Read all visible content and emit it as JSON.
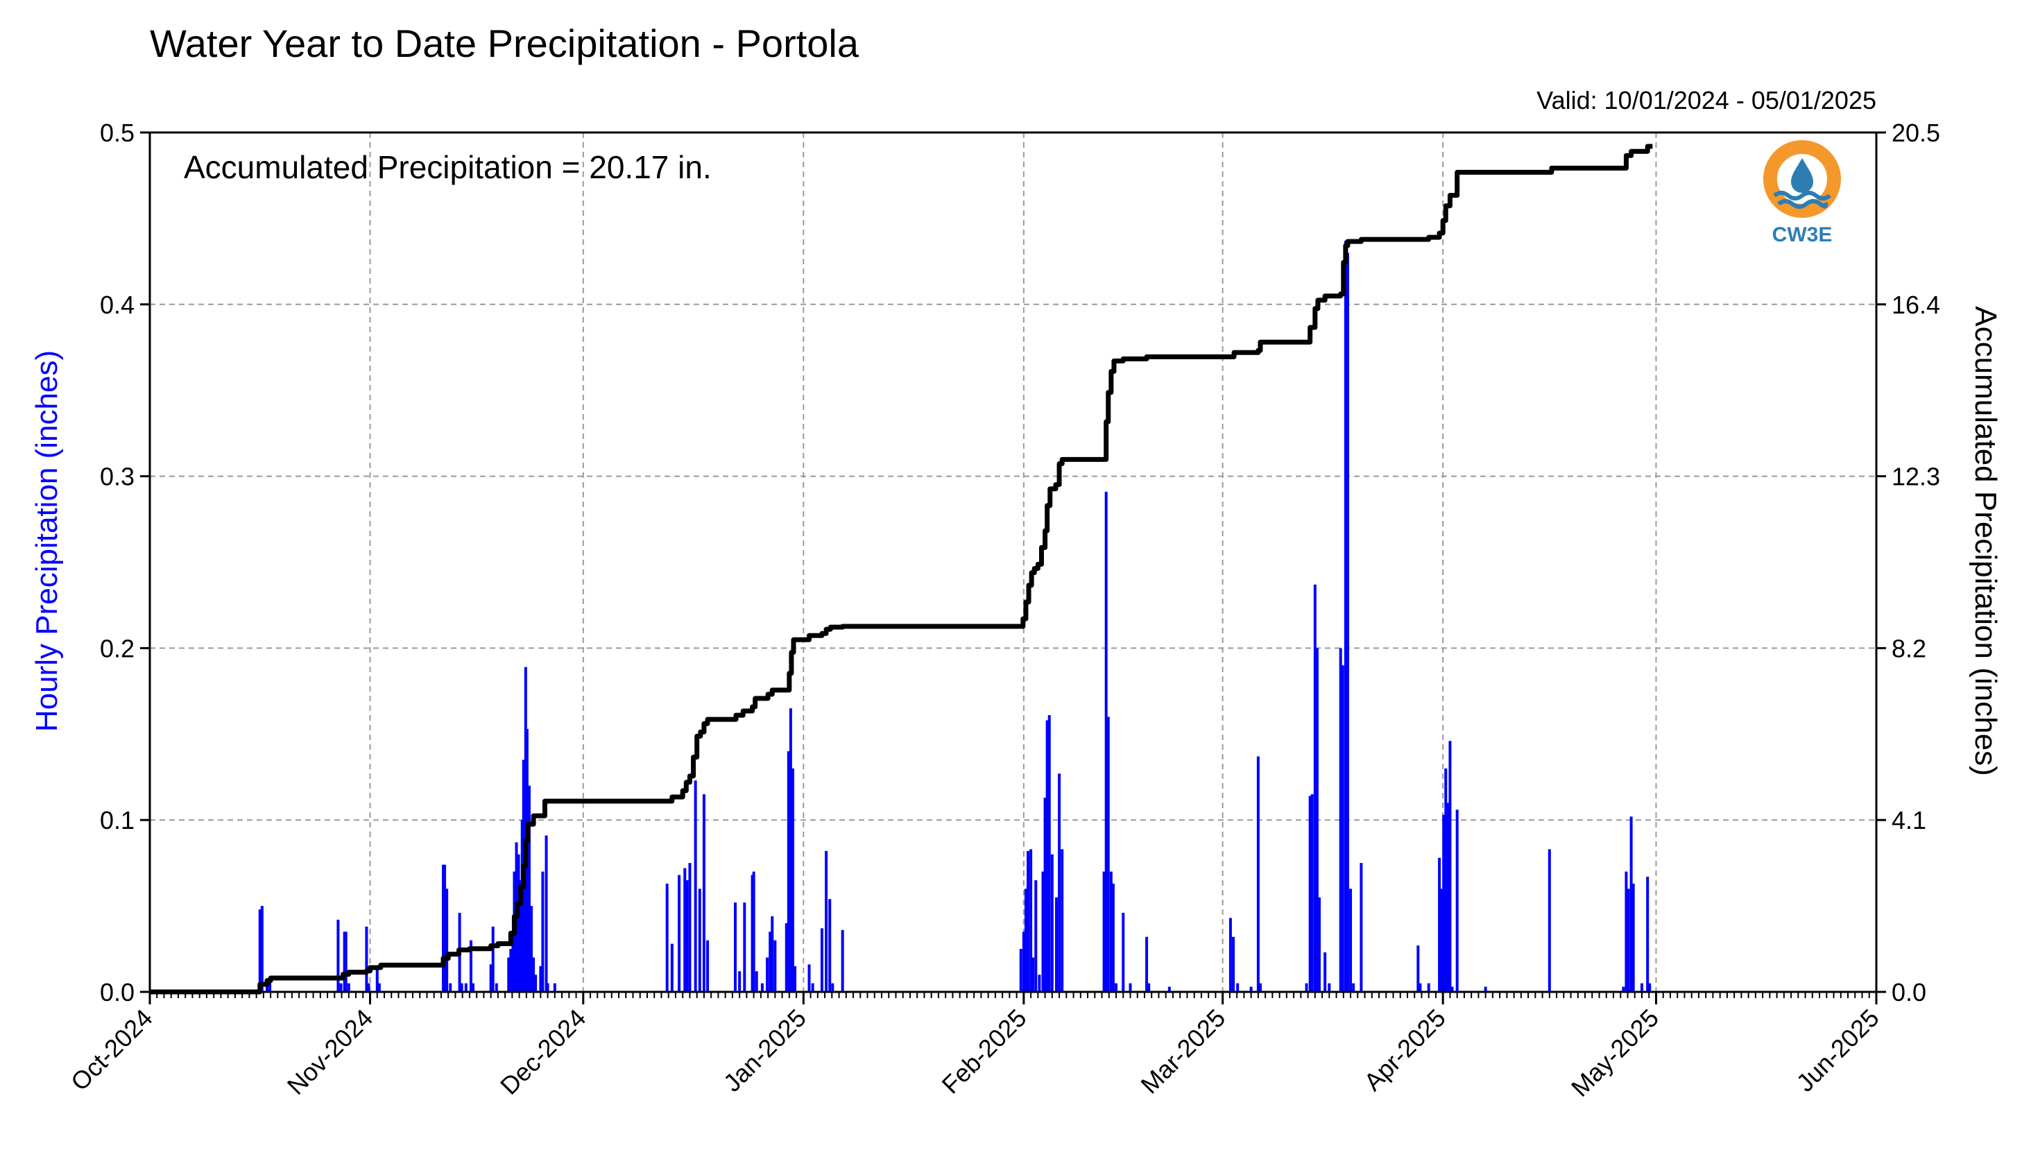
{
  "header": {
    "title": "Water Year to Date Precipitation - Portola",
    "valid": "Valid: 10/01/2024 - 05/01/2025"
  },
  "annotation": "Accumulated Precipitation = 20.17 in.",
  "logo": {
    "text": "CW3E",
    "icon": "water-drop-sun-logo-icon",
    "ring_color": "#f4982c",
    "wave_color": "#2d7db3"
  },
  "colors": {
    "hourly": "#0000ff",
    "accumulated": "#000000"
  },
  "chart_data": {
    "type": "bar",
    "title": "Water Year to Date Precipitation - Portola",
    "subtitle": "Valid: 10/01/2024 - 05/01/2025",
    "xlabel": "",
    "x_ticks": [
      "Oct-2024",
      "Nov-2024",
      "Dec-2024",
      "Jan-2025",
      "Feb-2025",
      "Mar-2025",
      "Apr-2025",
      "May-2025",
      "Jun-2025"
    ],
    "x_range_days": [
      0,
      243
    ],
    "x_unit": "days since 2024-10-01",
    "y_left": {
      "label": "Hourly Precipitation (inches)",
      "ticks": [
        "0.0",
        "0.1",
        "0.2",
        "0.3",
        "0.4",
        "0.5"
      ],
      "range": [
        0,
        0.5
      ]
    },
    "y_right": {
      "label": "Accumulated Precipitation (inches)",
      "ticks": [
        "0.0",
        "4.1",
        "8.2",
        "12.3",
        "16.4",
        "20.5"
      ],
      "range": [
        0,
        20.5
      ]
    },
    "grid": true,
    "series": [
      {
        "name": "Hourly Precipitation",
        "axis": "left",
        "type": "bar",
        "color": "#0000ff",
        "points": [
          [
            15.5,
            0.048
          ],
          [
            15.8,
            0.05
          ],
          [
            16.5,
            0.005
          ],
          [
            16.9,
            0.008
          ],
          [
            26.5,
            0.042
          ],
          [
            26.9,
            0.005
          ],
          [
            27.4,
            0.035
          ],
          [
            27.6,
            0.035
          ],
          [
            28.0,
            0.005
          ],
          [
            30.5,
            0.038
          ],
          [
            30.8,
            0.005
          ],
          [
            32.0,
            0.015
          ],
          [
            32.3,
            0.005
          ],
          [
            41.3,
            0.074
          ],
          [
            41.5,
            0.074
          ],
          [
            41.8,
            0.06
          ],
          [
            42.3,
            0.005
          ],
          [
            43.6,
            0.046
          ],
          [
            43.9,
            0.005
          ],
          [
            44.5,
            0.005
          ],
          [
            45.2,
            0.03
          ],
          [
            45.5,
            0.005
          ],
          [
            48.0,
            0.016
          ],
          [
            48.3,
            0.038
          ],
          [
            48.8,
            0.005
          ],
          [
            50.5,
            0.02
          ],
          [
            50.8,
            0.025
          ],
          [
            51.1,
            0.03
          ],
          [
            51.3,
            0.07
          ],
          [
            51.6,
            0.087
          ],
          [
            51.9,
            0.08
          ],
          [
            52.1,
            0.065
          ],
          [
            52.4,
            0.1
          ],
          [
            52.6,
            0.135
          ],
          [
            52.9,
            0.189
          ],
          [
            53.1,
            0.153
          ],
          [
            53.4,
            0.12
          ],
          [
            53.7,
            0.05
          ],
          [
            54.0,
            0.02
          ],
          [
            54.3,
            0.01
          ],
          [
            55.0,
            0.015
          ],
          [
            55.3,
            0.07
          ],
          [
            55.8,
            0.091
          ],
          [
            56.0,
            0.005
          ],
          [
            57.0,
            0.005
          ],
          [
            72.8,
            0.063
          ],
          [
            73.5,
            0.028
          ],
          [
            74.5,
            0.068
          ],
          [
            75.3,
            0.072
          ],
          [
            75.6,
            0.065
          ],
          [
            76.0,
            0.075
          ],
          [
            76.8,
            0.123
          ],
          [
            77.4,
            0.06
          ],
          [
            78.0,
            0.115
          ],
          [
            78.5,
            0.03
          ],
          [
            82.4,
            0.052
          ],
          [
            83.0,
            0.012
          ],
          [
            83.7,
            0.052
          ],
          [
            84.8,
            0.068
          ],
          [
            85.0,
            0.07
          ],
          [
            85.4,
            0.012
          ],
          [
            86.2,
            0.005
          ],
          [
            86.9,
            0.02
          ],
          [
            87.3,
            0.035
          ],
          [
            87.6,
            0.044
          ],
          [
            88.0,
            0.03
          ],
          [
            89.6,
            0.04
          ],
          [
            89.9,
            0.14
          ],
          [
            90.2,
            0.165
          ],
          [
            90.5,
            0.13
          ],
          [
            90.8,
            0.015
          ],
          [
            92.8,
            0.016
          ],
          [
            93.3,
            0.005
          ],
          [
            94.6,
            0.037
          ],
          [
            95.2,
            0.082
          ],
          [
            95.7,
            0.054
          ],
          [
            96.1,
            0.005
          ],
          [
            97.5,
            0.036
          ],
          [
            122.6,
            0.025
          ],
          [
            123.0,
            0.035
          ],
          [
            123.3,
            0.06
          ],
          [
            123.6,
            0.082
          ],
          [
            124.0,
            0.083
          ],
          [
            124.3,
            0.02
          ],
          [
            124.7,
            0.065
          ],
          [
            125.2,
            0.01
          ],
          [
            125.7,
            0.07
          ],
          [
            126.0,
            0.113
          ],
          [
            126.3,
            0.158
          ],
          [
            126.6,
            0.161
          ],
          [
            127.0,
            0.08
          ],
          [
            127.6,
            0.055
          ],
          [
            128.0,
            0.127
          ],
          [
            128.4,
            0.083
          ],
          [
            134.3,
            0.07
          ],
          [
            134.6,
            0.291
          ],
          [
            134.9,
            0.16
          ],
          [
            135.3,
            0.07
          ],
          [
            135.6,
            0.063
          ],
          [
            136.0,
            0.005
          ],
          [
            137.0,
            0.046
          ],
          [
            138.0,
            0.005
          ],
          [
            140.3,
            0.032
          ],
          [
            140.6,
            0.005
          ],
          [
            143.5,
            0.003
          ],
          [
            152.1,
            0.043
          ],
          [
            152.5,
            0.032
          ],
          [
            153.1,
            0.005
          ],
          [
            155.0,
            0.003
          ],
          [
            156.0,
            0.137
          ],
          [
            156.3,
            0.005
          ],
          [
            162.8,
            0.005
          ],
          [
            163.3,
            0.114
          ],
          [
            163.6,
            0.115
          ],
          [
            164.0,
            0.237
          ],
          [
            164.3,
            0.2
          ],
          [
            164.6,
            0.055
          ],
          [
            165.4,
            0.023
          ],
          [
            166.0,
            0.005
          ],
          [
            167.6,
            0.2
          ],
          [
            167.9,
            0.19
          ],
          [
            168.3,
            0.437
          ],
          [
            168.6,
            0.43
          ],
          [
            169.0,
            0.06
          ],
          [
            169.4,
            0.005
          ],
          [
            170.5,
            0.075
          ],
          [
            178.5,
            0.027
          ],
          [
            178.8,
            0.005
          ],
          [
            180.0,
            0.005
          ],
          [
            181.5,
            0.078
          ],
          [
            181.8,
            0.06
          ],
          [
            182.1,
            0.103
          ],
          [
            182.4,
            0.13
          ],
          [
            182.7,
            0.11
          ],
          [
            183.0,
            0.146
          ],
          [
            183.3,
            0.003
          ],
          [
            184.0,
            0.106
          ],
          [
            188.0,
            0.003
          ],
          [
            197.0,
            0.083
          ],
          [
            207.4,
            0.003
          ],
          [
            207.8,
            0.07
          ],
          [
            208.1,
            0.06
          ],
          [
            208.5,
            0.102
          ],
          [
            208.8,
            0.063
          ],
          [
            210.0,
            0.005
          ],
          [
            210.8,
            0.067
          ],
          [
            211.1,
            0.005
          ]
        ]
      },
      {
        "name": "Accumulated Precipitation",
        "axis": "right",
        "type": "step",
        "color": "#000000",
        "points": [
          [
            0,
            0.0
          ],
          [
            15.0,
            0.0
          ],
          [
            15.5,
            0.18
          ],
          [
            16.5,
            0.27
          ],
          [
            17.0,
            0.33
          ],
          [
            26.5,
            0.33
          ],
          [
            27.2,
            0.42
          ],
          [
            28.0,
            0.47
          ],
          [
            30.5,
            0.5
          ],
          [
            31.0,
            0.58
          ],
          [
            32.0,
            0.58
          ],
          [
            32.5,
            0.64
          ],
          [
            41.0,
            0.64
          ],
          [
            41.3,
            0.8
          ],
          [
            42.0,
            0.9
          ],
          [
            43.5,
            1.0
          ],
          [
            45.0,
            1.03
          ],
          [
            48.0,
            1.1
          ],
          [
            49.0,
            1.15
          ],
          [
            50.2,
            1.15
          ],
          [
            50.8,
            1.4
          ],
          [
            51.3,
            1.8
          ],
          [
            51.7,
            2.1
          ],
          [
            52.2,
            2.5
          ],
          [
            52.6,
            3.0
          ],
          [
            52.9,
            3.6
          ],
          [
            53.2,
            4.0
          ],
          [
            54.0,
            4.2
          ],
          [
            55.2,
            4.2
          ],
          [
            55.6,
            4.55
          ],
          [
            56.0,
            4.55
          ],
          [
            72.5,
            4.55
          ],
          [
            73.5,
            4.65
          ],
          [
            75.0,
            4.8
          ],
          [
            75.5,
            5.0
          ],
          [
            76.0,
            5.15
          ],
          [
            76.5,
            5.6
          ],
          [
            77.0,
            6.1
          ],
          [
            77.5,
            6.2
          ],
          [
            78.0,
            6.4
          ],
          [
            78.5,
            6.5
          ],
          [
            81.0,
            6.5
          ],
          [
            82.5,
            6.6
          ],
          [
            83.5,
            6.7
          ],
          [
            84.8,
            6.8
          ],
          [
            85.2,
            7.0
          ],
          [
            86.0,
            7.0
          ],
          [
            87.0,
            7.1
          ],
          [
            87.6,
            7.2
          ],
          [
            89.5,
            7.2
          ],
          [
            90.0,
            7.6
          ],
          [
            90.3,
            8.1
          ],
          [
            90.6,
            8.4
          ],
          [
            91.0,
            8.4
          ],
          [
            92.8,
            8.5
          ],
          [
            94.6,
            8.55
          ],
          [
            95.2,
            8.65
          ],
          [
            95.8,
            8.7
          ],
          [
            97.5,
            8.72
          ],
          [
            122.5,
            8.72
          ],
          [
            122.9,
            8.9
          ],
          [
            123.3,
            9.3
          ],
          [
            123.7,
            9.7
          ],
          [
            124.1,
            10.0
          ],
          [
            124.5,
            10.1
          ],
          [
            125.0,
            10.2
          ],
          [
            125.5,
            10.6
          ],
          [
            126.0,
            11.0
          ],
          [
            126.3,
            11.6
          ],
          [
            126.7,
            12.0
          ],
          [
            127.5,
            12.1
          ],
          [
            128.0,
            12.6
          ],
          [
            128.4,
            12.7
          ],
          [
            134.3,
            12.7
          ],
          [
            134.6,
            13.6
          ],
          [
            134.9,
            14.3
          ],
          [
            135.3,
            14.8
          ],
          [
            135.7,
            15.05
          ],
          [
            137.0,
            15.1
          ],
          [
            140.3,
            15.15
          ],
          [
            152.0,
            15.15
          ],
          [
            152.6,
            15.25
          ],
          [
            156.0,
            15.3
          ],
          [
            156.3,
            15.5
          ],
          [
            162.8,
            15.5
          ],
          [
            163.3,
            15.85
          ],
          [
            164.0,
            16.3
          ],
          [
            164.4,
            16.5
          ],
          [
            165.4,
            16.6
          ],
          [
            167.6,
            16.65
          ],
          [
            168.0,
            17.4
          ],
          [
            168.3,
            17.8
          ],
          [
            168.6,
            17.9
          ],
          [
            170.5,
            17.95
          ],
          [
            178.5,
            17.95
          ],
          [
            180.0,
            18.0
          ],
          [
            181.5,
            18.1
          ],
          [
            182.0,
            18.4
          ],
          [
            182.4,
            18.75
          ],
          [
            183.0,
            19.0
          ],
          [
            184.0,
            19.55
          ],
          [
            197.0,
            19.55
          ],
          [
            197.3,
            19.65
          ],
          [
            207.4,
            19.65
          ],
          [
            207.8,
            19.95
          ],
          [
            208.5,
            20.05
          ],
          [
            210.8,
            20.17
          ],
          [
            211.5,
            20.17
          ]
        ]
      }
    ]
  }
}
